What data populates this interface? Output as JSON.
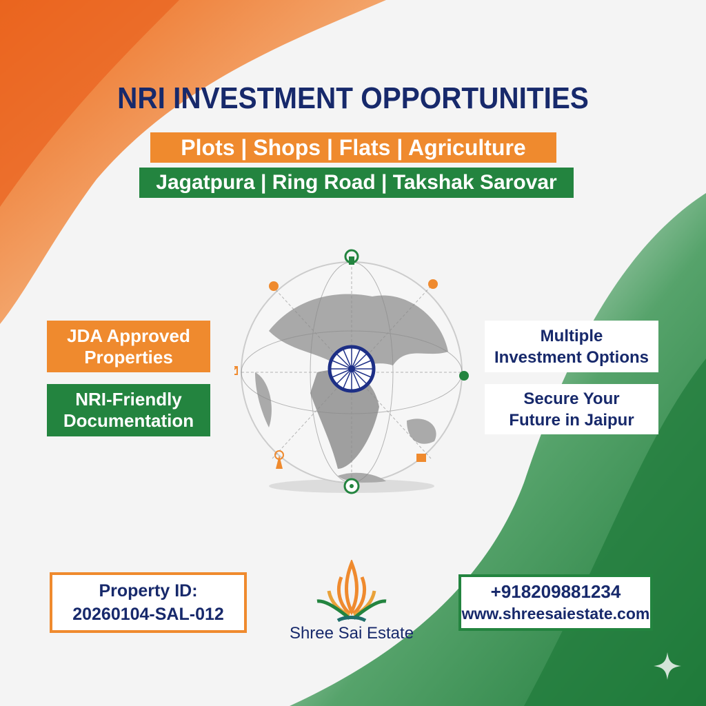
{
  "poster": {
    "title": "NRI INVESTMENT OPPORTUNITIES",
    "property_types": "Plots | Shops | Flats | Agriculture",
    "locations": "Jagatpura | Ring Road | Takshak Sarovar"
  },
  "features_left": [
    {
      "line1": "JDA Approved",
      "line2": "Properties"
    },
    {
      "line1": "NRI-Friendly",
      "line2": "Documentation"
    }
  ],
  "features_right": [
    {
      "line1": "Multiple",
      "line2": "Investment Options"
    },
    {
      "line1": "Secure Your",
      "line2": "Future in Jaipur"
    }
  ],
  "property": {
    "label": "Property ID:",
    "id": "20260104-SAL-012"
  },
  "brand": {
    "name": "Shree Sai Estate"
  },
  "contact": {
    "phone": "+918209881234",
    "website": "www.shreesaiestate.com"
  },
  "icons": [
    "globe-icon",
    "ashoka-chakra-icon",
    "satellite-icon",
    "mail-icon",
    "tower-icon",
    "video-icon",
    "location-pin-icon",
    "lotus-logo-icon",
    "sparkle-icon"
  ],
  "colors": {
    "saffron": "#ef8a2e",
    "green": "#23843f",
    "navy": "#17296b",
    "white": "#ffffff"
  }
}
